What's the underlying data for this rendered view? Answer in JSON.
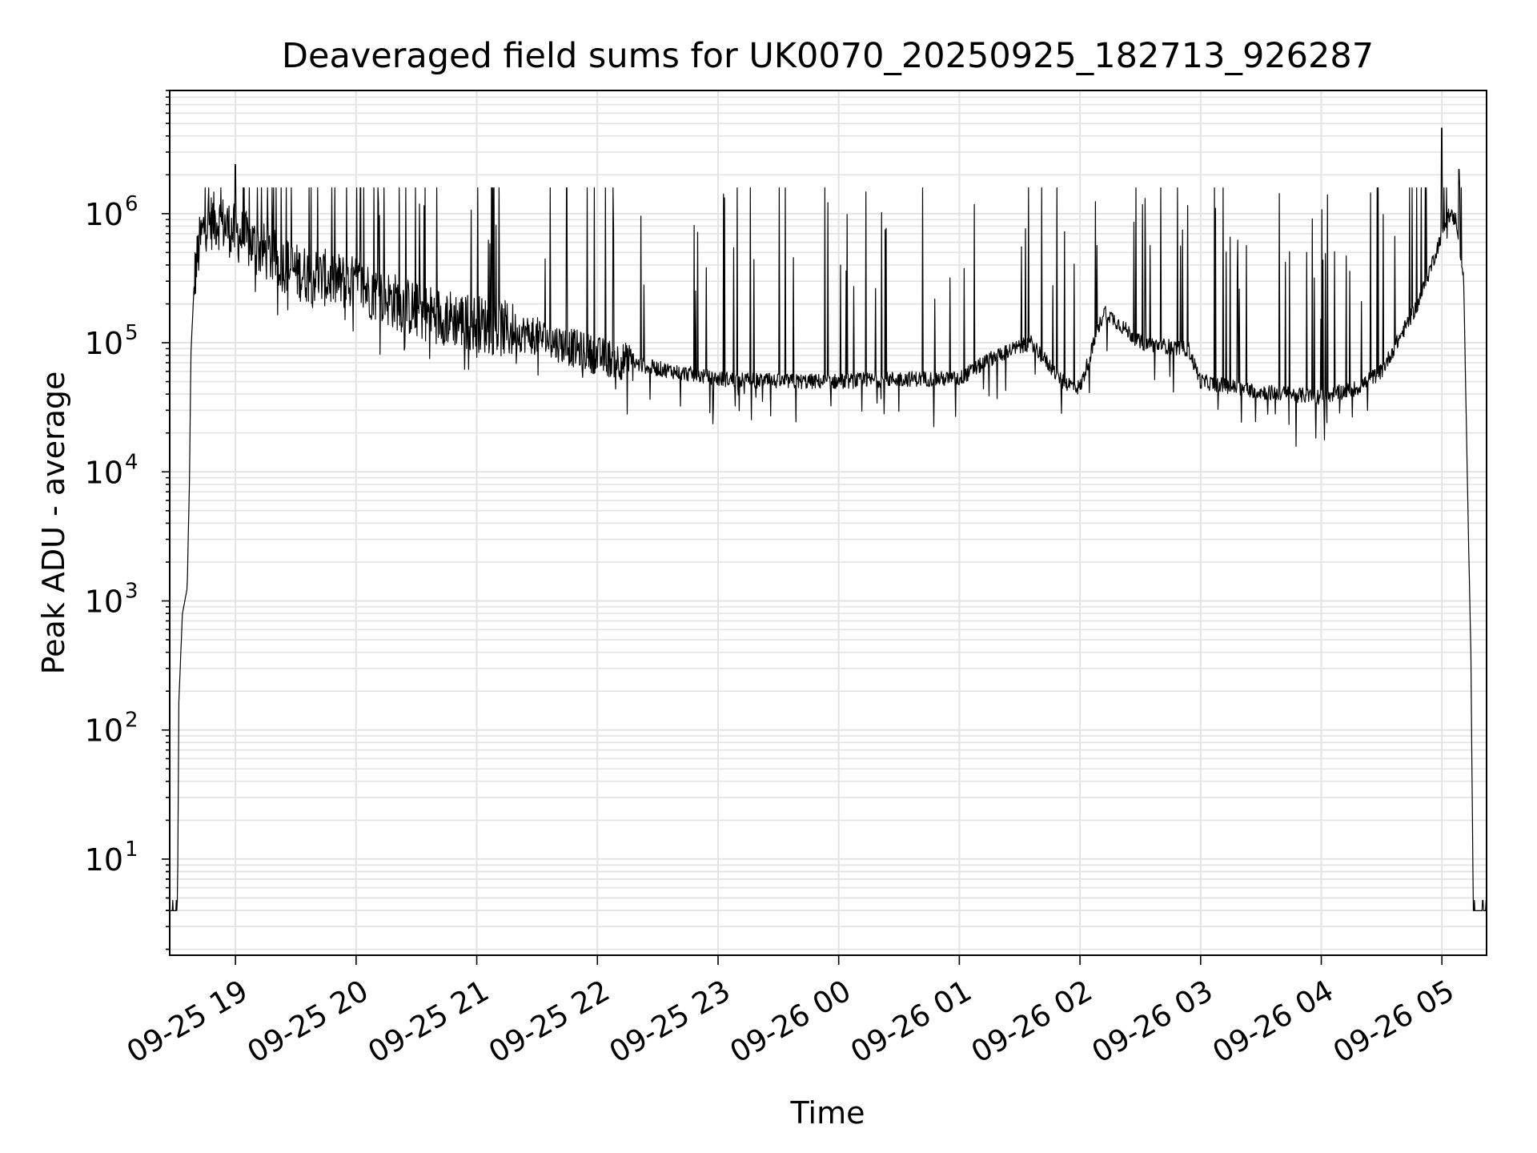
{
  "chart_data": {
    "type": "line",
    "title": "Deaveraged field sums for UK0070_20250925_182713_926287",
    "xlabel": "Time",
    "ylabel": "Peak ADU - average",
    "yscale": "log",
    "ylim": [
      1.8,
      9000000
    ],
    "xlim_hours_from_0925_18": [
      0.455,
      11.37
    ],
    "x_tick_labels": [
      "09-25 19",
      "09-25 20",
      "09-25 21",
      "09-25 22",
      "09-25 23",
      "09-26 00",
      "09-26 01",
      "09-26 02",
      "09-26 03",
      "09-26 04",
      "09-26 05"
    ],
    "x_tick_hours": [
      1,
      2,
      3,
      4,
      5,
      6,
      7,
      8,
      9,
      10,
      11
    ],
    "y_tick_labels": [
      {
        "base": "10",
        "exp": "1"
      },
      {
        "base": "10",
        "exp": "2"
      },
      {
        "base": "10",
        "exp": "3"
      },
      {
        "base": "10",
        "exp": "4"
      },
      {
        "base": "10",
        "exp": "5"
      },
      {
        "base": "10",
        "exp": "6"
      }
    ],
    "y_tick_values": [
      10,
      100,
      1000,
      10000,
      100000,
      1000000
    ],
    "grid": true,
    "line_color": "#000000",
    "grid_color": "#e3e3e3",
    "series": [
      {
        "name": "Deaveraged field sum",
        "baseline_profile": {
          "hours_from_0925_18": [
            0.455,
            0.52,
            0.53,
            0.56,
            0.6,
            0.62,
            0.63,
            0.66,
            0.7,
            0.75,
            0.85,
            1.0,
            1.5,
            2.0,
            2.5,
            3.0,
            3.5,
            4.0,
            4.5,
            5.0,
            5.5,
            6.0,
            6.5,
            7.0,
            7.3,
            7.6,
            7.85,
            8.0,
            8.2,
            8.5,
            8.9,
            9.0,
            9.5,
            10.0,
            10.3,
            10.5,
            10.8,
            10.95,
            11.05,
            11.12,
            11.18,
            11.22,
            11.24,
            11.26,
            11.37
          ],
          "log10_values": [
            0.6,
            0.6,
            2.2,
            2.9,
            3.1,
            4.0,
            4.9,
            5.5,
            5.75,
            5.93,
            5.95,
            5.85,
            5.55,
            5.45,
            5.25,
            5.15,
            5.05,
            4.9,
            4.8,
            4.72,
            4.7,
            4.7,
            4.72,
            4.72,
            4.9,
            5.0,
            4.7,
            4.65,
            5.25,
            5.0,
            4.95,
            4.7,
            4.62,
            4.58,
            4.65,
            4.78,
            5.3,
            5.7,
            6.0,
            5.95,
            5.5,
            3.5,
            2.6,
            0.6,
            0.6
          ]
        },
        "notable_peaks": [
          {
            "hour": 1.0,
            "value": 2400000
          },
          {
            "hour": 11.0,
            "value": 4600000
          },
          {
            "hour": 11.14,
            "value": 2200000
          }
        ]
      }
    ]
  }
}
